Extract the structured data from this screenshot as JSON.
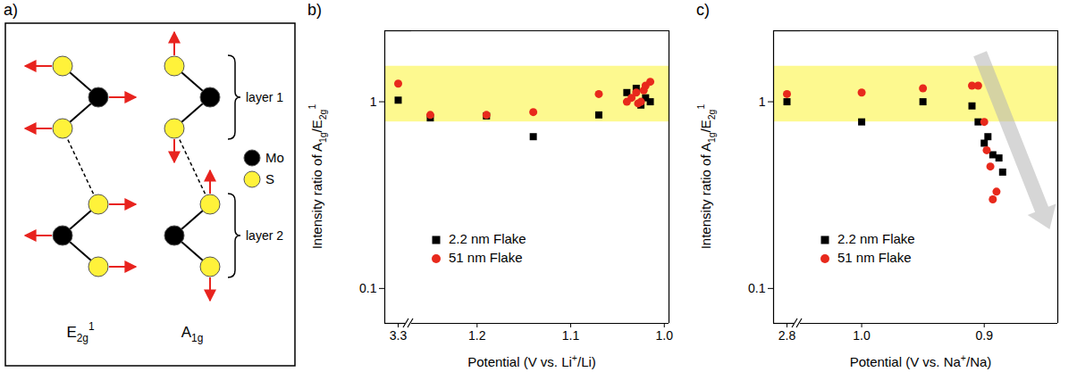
{
  "diagram": {
    "panel": "a)",
    "modes": [
      [
        {
          "t": "E"
        },
        {
          "sub": "2g"
        },
        {
          "sup": "1"
        }
      ],
      [
        {
          "t": "A"
        },
        {
          "sub": "1g"
        }
      ]
    ],
    "layers": [
      "layer 1",
      "layer 2"
    ],
    "atoms": [
      {
        "name": "Mo",
        "color": "#000000"
      },
      {
        "name": "S",
        "color": "#fff23a"
      }
    ]
  },
  "chart_data": [
    {
      "type": "scatter",
      "panel": "b)",
      "ylabel": [
        {
          "t": "Intensity ratio of A"
        },
        {
          "sub": "1g"
        },
        {
          "t": "/E"
        },
        {
          "sub": "2g"
        },
        {
          "sup": "1"
        }
      ],
      "xlabel": [
        {
          "t": "Potential (V vs. Li"
        },
        {
          "sup": "+"
        },
        {
          "t": "/Li)"
        }
      ],
      "log": "y",
      "grid": false,
      "legend": "bottom-left",
      "ylim": [
        0.065,
        2.4
      ],
      "yticks": [
        0.1,
        1
      ],
      "band": {
        "range": [
          0.78,
          1.55
        ],
        "color": "#fdf98f"
      },
      "x_segments": [
        {
          "xlim": [
            3.35,
            3.25
          ],
          "xticks": [
            3.3
          ]
        },
        {
          "xlim": [
            1.27,
            0.995
          ],
          "xticks": [
            1.2,
            1.1,
            {
              "value": 1,
              "label": "1.0"
            }
          ]
        }
      ],
      "series": [
        {
          "name": "2.2 nm Flake",
          "color": "#000000",
          "marker": "square",
          "x": [
            3.3,
            1.25,
            1.19,
            1.14,
            1.07,
            1.04,
            1.03,
            1.025,
            1.02,
            1.015
          ],
          "values": [
            1.02,
            0.82,
            0.84,
            0.65,
            0.85,
            1.12,
            1.18,
            0.96,
            1.05,
            1.0
          ]
        },
        {
          "name": "51 nm Flake",
          "color": "#e8291c",
          "marker": "circle",
          "x": [
            3.3,
            1.25,
            1.19,
            1.14,
            1.07,
            1.04,
            1.035,
            1.03,
            1.028,
            1.025,
            1.022,
            1.02,
            1.015
          ],
          "values": [
            1.25,
            0.85,
            0.85,
            0.88,
            1.1,
            1.0,
            1.05,
            1.12,
            0.98,
            1.0,
            1.15,
            1.22,
            1.28
          ]
        }
      ]
    },
    {
      "type": "scatter",
      "panel": "c)",
      "ylabel": [
        {
          "t": "Intensity ratio of A"
        },
        {
          "sub": "1g"
        },
        {
          "t": "/E"
        },
        {
          "sub": "2g"
        },
        {
          "sup": "1"
        }
      ],
      "xlabel": [
        {
          "t": "Potential (V vs. Na"
        },
        {
          "sup": "+"
        },
        {
          "t": "/Na)"
        }
      ],
      "log": "y",
      "grid": false,
      "legend": "bottom-left",
      "ylim": [
        0.065,
        2.4
      ],
      "yticks": [
        0.1,
        1
      ],
      "band": {
        "range": [
          0.78,
          1.55
        ],
        "color": "#fdf98f"
      },
      "x_segments": [
        {
          "xlim": [
            2.85,
            2.75
          ],
          "xticks": [
            2.8
          ]
        },
        {
          "xlim": [
            1.05,
            0.84
          ],
          "xticks": [
            {
              "value": 1,
              "label": "1.0"
            },
            0.9
          ]
        }
      ],
      "series": [
        {
          "name": "2.2 nm Flake",
          "color": "#000000",
          "marker": "square",
          "x": [
            2.8,
            1.0,
            0.95,
            0.91,
            0.905,
            0.9,
            0.897,
            0.893,
            0.888,
            0.885
          ],
          "values": [
            1.0,
            0.78,
            1.0,
            0.95,
            0.78,
            0.6,
            0.65,
            0.52,
            0.5,
            0.42
          ]
        },
        {
          "name": "51 nm Flake",
          "color": "#e8291c",
          "marker": "circle",
          "x": [
            2.8,
            1.0,
            0.95,
            0.91,
            0.905,
            0.9,
            0.898,
            0.895,
            0.893,
            0.89
          ],
          "values": [
            1.1,
            1.12,
            1.18,
            1.22,
            1.22,
            0.78,
            0.55,
            0.45,
            0.3,
            0.33
          ]
        }
      ]
    }
  ]
}
